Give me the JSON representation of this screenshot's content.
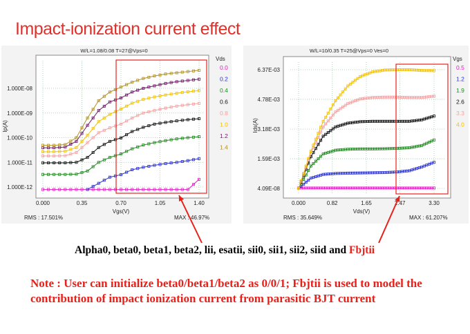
{
  "slide": {
    "title": "Impact-ionization current effect",
    "params_text": "Alpha0, beta0, beta1, beta2, lii, esatii, sii0, sii1, sii2, siid and ",
    "params_highlight": "Fbjtii",
    "note": "Note : User can initialize beta0/beta1/beta2 as 0/0/1; Fbjtii is used to model the contribution of impact ionization current from parasitic BJT current"
  },
  "chart_data": [
    {
      "type": "line",
      "title": "W/L=1.08/0.08    T=27@Vps=0",
      "xlabel": "Vgs(V)",
      "ylabel": "Ip(A)",
      "yscale": "log",
      "xlim": [
        0,
        1.4
      ],
      "ylim_log10": [
        -12,
        -8
      ],
      "xticks": [
        "0.000",
        "0.35",
        "0.70",
        "1.05",
        "1.40"
      ],
      "xtick_values": [
        0,
        0.35,
        0.7,
        1.05,
        1.4
      ],
      "yticks": [
        "1.000E-08",
        "1.000E-09",
        "1.000E-10",
        "1.000E-11",
        "1.000E-12"
      ],
      "ytick_values": [
        -8,
        -9,
        -10,
        -11,
        -12
      ],
      "legend_title": "Vds",
      "rms": "RMS : 17.501%",
      "max": "MAX : 46.97%",
      "x": [
        0,
        0.1,
        0.2,
        0.3,
        0.4,
        0.5,
        0.6,
        0.7,
        0.8,
        0.9,
        1.0,
        1.1,
        1.2,
        1.3,
        1.4
      ],
      "series": [
        {
          "name": "0.0",
          "color": "#e020c0",
          "log10_values": [
            -12.1,
            -12.1,
            -12.1,
            -12.1,
            -12.1,
            -12.1,
            -12.1,
            -12.1,
            -12.1,
            -12.1,
            -12.1,
            -12.1,
            -12.1,
            -12.1,
            -11.69
          ]
        },
        {
          "name": "0.2",
          "color": "#2a32d0",
          "log10_values": [
            null,
            null,
            null,
            null,
            -12.1,
            -11.85,
            -11.6,
            -11.5,
            -11.3,
            -11.2,
            -11.12,
            -11.05,
            -11.0,
            -10.93,
            -10.85
          ]
        },
        {
          "name": "0.4",
          "color": "#228a22",
          "log10_values": [
            -11.49,
            -11.49,
            -11.49,
            -11.48,
            -11.35,
            -11.0,
            -10.8,
            -10.66,
            -10.45,
            -10.3,
            -10.2,
            -10.12,
            -10.05,
            -10.0,
            -9.96
          ]
        },
        {
          "name": "0.6",
          "color": "#111111",
          "log10_values": [
            -11.02,
            -11.02,
            -11.02,
            -11.0,
            -10.8,
            -10.4,
            -10.15,
            -10.01,
            -9.75,
            -9.58,
            -9.45,
            -9.38,
            -9.32,
            -9.27,
            -9.23
          ]
        },
        {
          "name": "0.8",
          "color": "#f6a0a0",
          "log10_values": [
            -10.74,
            -10.74,
            -10.73,
            -10.6,
            -10.2,
            -9.8,
            -9.6,
            -9.45,
            -9.2,
            -9.0,
            -8.9,
            -8.8,
            -8.72,
            -8.66,
            -8.61
          ]
        },
        {
          "name": "1.0",
          "color": "#f2c200",
          "log10_values": [
            -10.57,
            -10.57,
            -10.55,
            -10.4,
            -9.9,
            -9.35,
            -9.05,
            -8.84,
            -8.6,
            -8.45,
            -8.35,
            -8.27,
            -8.2,
            -8.14,
            -8.09
          ]
        },
        {
          "name": "1.2",
          "color": "#6e1868",
          "log10_values": [
            -10.41,
            -10.41,
            -10.38,
            -10.15,
            -9.5,
            -8.9,
            -8.55,
            -8.39,
            -8.15,
            -8.0,
            -7.9,
            -7.8,
            -7.73,
            -7.68,
            -7.63
          ]
        },
        {
          "name": "1.4",
          "color": "#b09022",
          "log10_values": [
            -10.31,
            -10.31,
            -10.28,
            -10.0,
            -9.2,
            -8.5,
            -8.15,
            -7.95,
            -7.75,
            -7.6,
            -7.5,
            -7.42,
            -7.37,
            -7.32,
            -7.27
          ]
        }
      ],
      "highlight_region_vgs": [
        0.67,
        1.42
      ]
    },
    {
      "type": "line",
      "title": "W/L=10/0.35    T=25@Vps=0 Ves=0",
      "xlabel": "Vds(V)",
      "ylabel": "Ids(A)",
      "xlim": [
        0,
        3.3
      ],
      "ylim_mA": [
        0,
        6.37
      ],
      "xticks": [
        "0.000",
        "0.82",
        "1.65",
        "2.47",
        "3.30"
      ],
      "xtick_values": [
        0,
        0.82,
        1.65,
        2.47,
        3.3
      ],
      "yticks": [
        "6.37E-03",
        "4.78E-03",
        "3.18E-03",
        "1.59E-03",
        "4.09E-08"
      ],
      "ytick_values_mA": [
        6.37,
        4.78,
        3.18,
        1.59,
        0
      ],
      "legend_title": "Vgs",
      "rms": "RMS : 35.649%",
      "max": "MAX : 61.207%",
      "x": [
        0,
        0.3,
        0.6,
        0.9,
        1.2,
        1.5,
        1.8,
        2.1,
        2.4,
        2.7,
        3.0,
        3.3
      ],
      "series": [
        {
          "name": "0.5",
          "color": "#e020c0",
          "values_mA": [
            0.02,
            0.02,
            0.02,
            0.02,
            0.02,
            0.02,
            0.02,
            0.02,
            0.02,
            0.02,
            0.02,
            0.02
          ]
        },
        {
          "name": "1.2",
          "color": "#2a32d0",
          "values_mA": [
            0,
            0.55,
            0.75,
            0.8,
            0.82,
            0.83,
            0.84,
            0.85,
            0.88,
            0.95,
            1.15,
            1.4
          ]
        },
        {
          "name": "1.9",
          "color": "#228a22",
          "values_mA": [
            0,
            1.2,
            1.85,
            2.05,
            2.1,
            2.12,
            2.12,
            2.13,
            2.15,
            2.18,
            2.3,
            2.6
          ]
        },
        {
          "name": "2.6",
          "color": "#111111",
          "values_mA": [
            0,
            1.7,
            2.8,
            3.3,
            3.5,
            3.58,
            3.6,
            3.6,
            3.6,
            3.6,
            3.68,
            3.88
          ]
        },
        {
          "name": "3.3",
          "color": "#f6a0a0",
          "values_mA": [
            0,
            1.9,
            3.3,
            4.1,
            4.55,
            4.8,
            4.88,
            4.9,
            4.9,
            4.88,
            4.88,
            4.95
          ]
        },
        {
          "name": "4.0",
          "color": "#f2c200",
          "values_mA": [
            0,
            2.0,
            3.6,
            4.7,
            5.5,
            6.0,
            6.25,
            6.35,
            6.37,
            6.37,
            6.33,
            6.32
          ]
        }
      ],
      "highlight_region_vds": [
        2.37,
        3.45
      ]
    }
  ]
}
